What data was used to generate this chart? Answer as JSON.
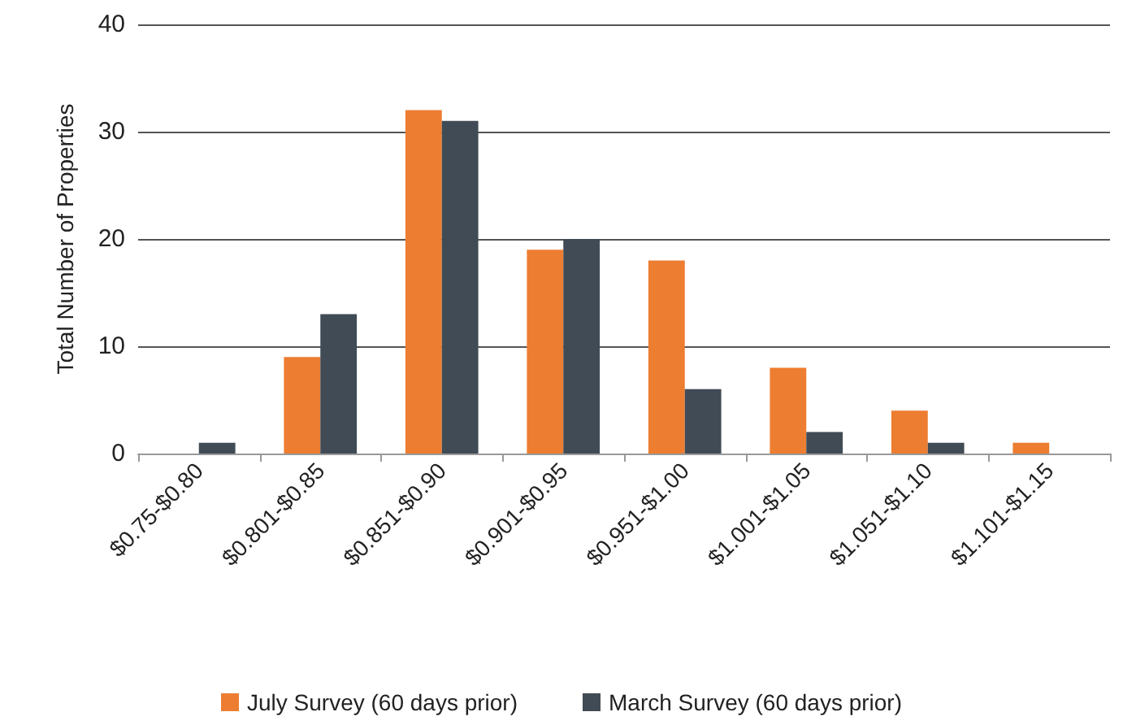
{
  "chart_data": {
    "type": "bar",
    "ylabel": "Total Number of Properties",
    "categories": [
      "$0.75-$0.80",
      "$0.801-$0.85",
      "$0.851-$0.90",
      "$0.901-$0.95",
      "$0.951-$1.00",
      "$1.001-$1.05",
      "$1.051-$1.10",
      "$1.101-$1.15"
    ],
    "series": [
      {
        "name": "July Survey (60 days prior)",
        "color": "#ed7d31",
        "values": [
          0,
          9,
          32,
          19,
          18,
          8,
          4,
          1
        ]
      },
      {
        "name": "March Survey (60 days prior)",
        "color": "#404b55",
        "values": [
          1,
          13,
          31,
          20,
          6,
          2,
          1,
          0
        ]
      }
    ],
    "ylim": [
      0,
      40
    ],
    "yticks": [
      0,
      10,
      20,
      30,
      40
    ],
    "grid": "y",
    "legend": "bottom"
  }
}
